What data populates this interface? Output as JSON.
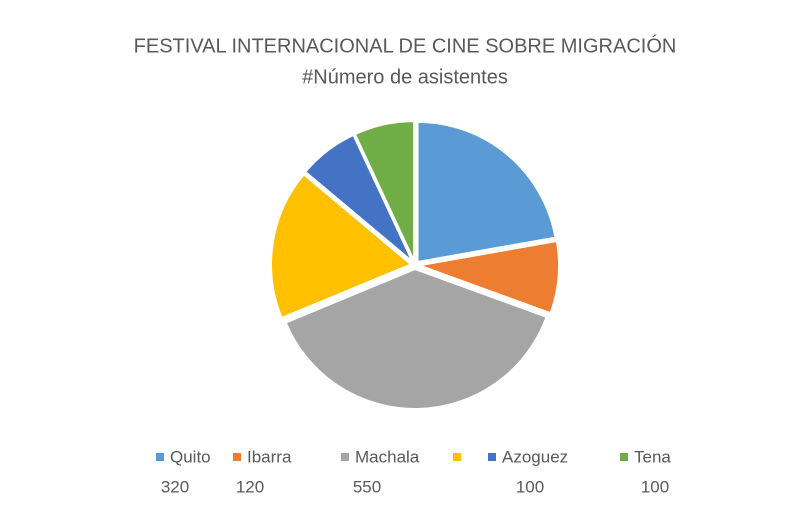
{
  "chart_data": {
    "type": "pie",
    "title": "FESTIVAL INTERNACIONAL DE CINE SOBRE MIGRACIÓN",
    "subtitle": "#Número de asistentes",
    "categories": [
      "Quito",
      "Ibarra",
      "Machala",
      null,
      "Azoguez",
      "Tena"
    ],
    "values": [
      320,
      120,
      550,
      250,
      100,
      100
    ],
    "colors": [
      "#5b9bd5",
      "#ed7d31",
      "#a5a5a5",
      "#ffc000",
      "#4472c4",
      "#70ad47"
    ],
    "value_labels": [
      "320",
      "120",
      "550",
      null,
      "100",
      "100"
    ],
    "legend": "bottom"
  }
}
